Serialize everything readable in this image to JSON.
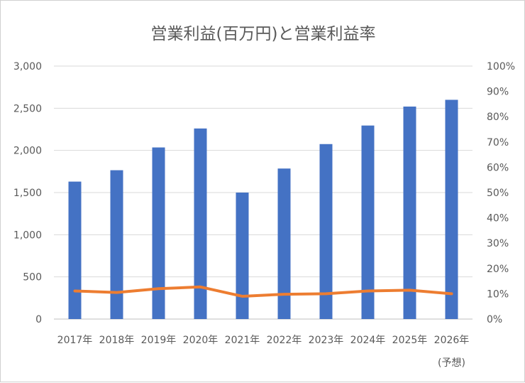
{
  "chart_data": {
    "type": "bar",
    "title": "営業利益(百万円)と営業利益率",
    "categories": [
      "2017年",
      "2018年",
      "2019年",
      "2020年",
      "2021年",
      "2022年",
      "2023年",
      "2024年",
      "2025年",
      "2026年"
    ],
    "category_note": {
      "index": 9,
      "text": "(予想)"
    },
    "series": [
      {
        "kind": "bar",
        "axis": "left",
        "color": "#4472c4",
        "values": [
          1630,
          1765,
          2035,
          2260,
          1500,
          1785,
          2075,
          2295,
          2520,
          2600
        ]
      },
      {
        "kind": "line",
        "axis": "right",
        "color": "#ed7d31",
        "values": [
          0.111,
          0.105,
          0.12,
          0.127,
          0.09,
          0.098,
          0.1,
          0.111,
          0.114,
          0.1
        ]
      }
    ],
    "y_left": {
      "min": 0,
      "max": 3000,
      "ticks": [
        0,
        500,
        1000,
        1500,
        2000,
        2500,
        3000
      ],
      "tick_labels": [
        "0",
        "500",
        "1,000",
        "1,500",
        "2,000",
        "2,500",
        "3,000"
      ]
    },
    "y_right": {
      "min": 0,
      "max": 1,
      "ticks": [
        0,
        0.1,
        0.2,
        0.3,
        0.4,
        0.5,
        0.6,
        0.7,
        0.8,
        0.9,
        1.0
      ],
      "tick_labels": [
        "0%",
        "10%",
        "20%",
        "30%",
        "40%",
        "50%",
        "60%",
        "70%",
        "80%",
        "90%",
        "100%"
      ]
    },
    "xlabel": "",
    "ylabel": "",
    "grid": true,
    "legend": "none"
  }
}
